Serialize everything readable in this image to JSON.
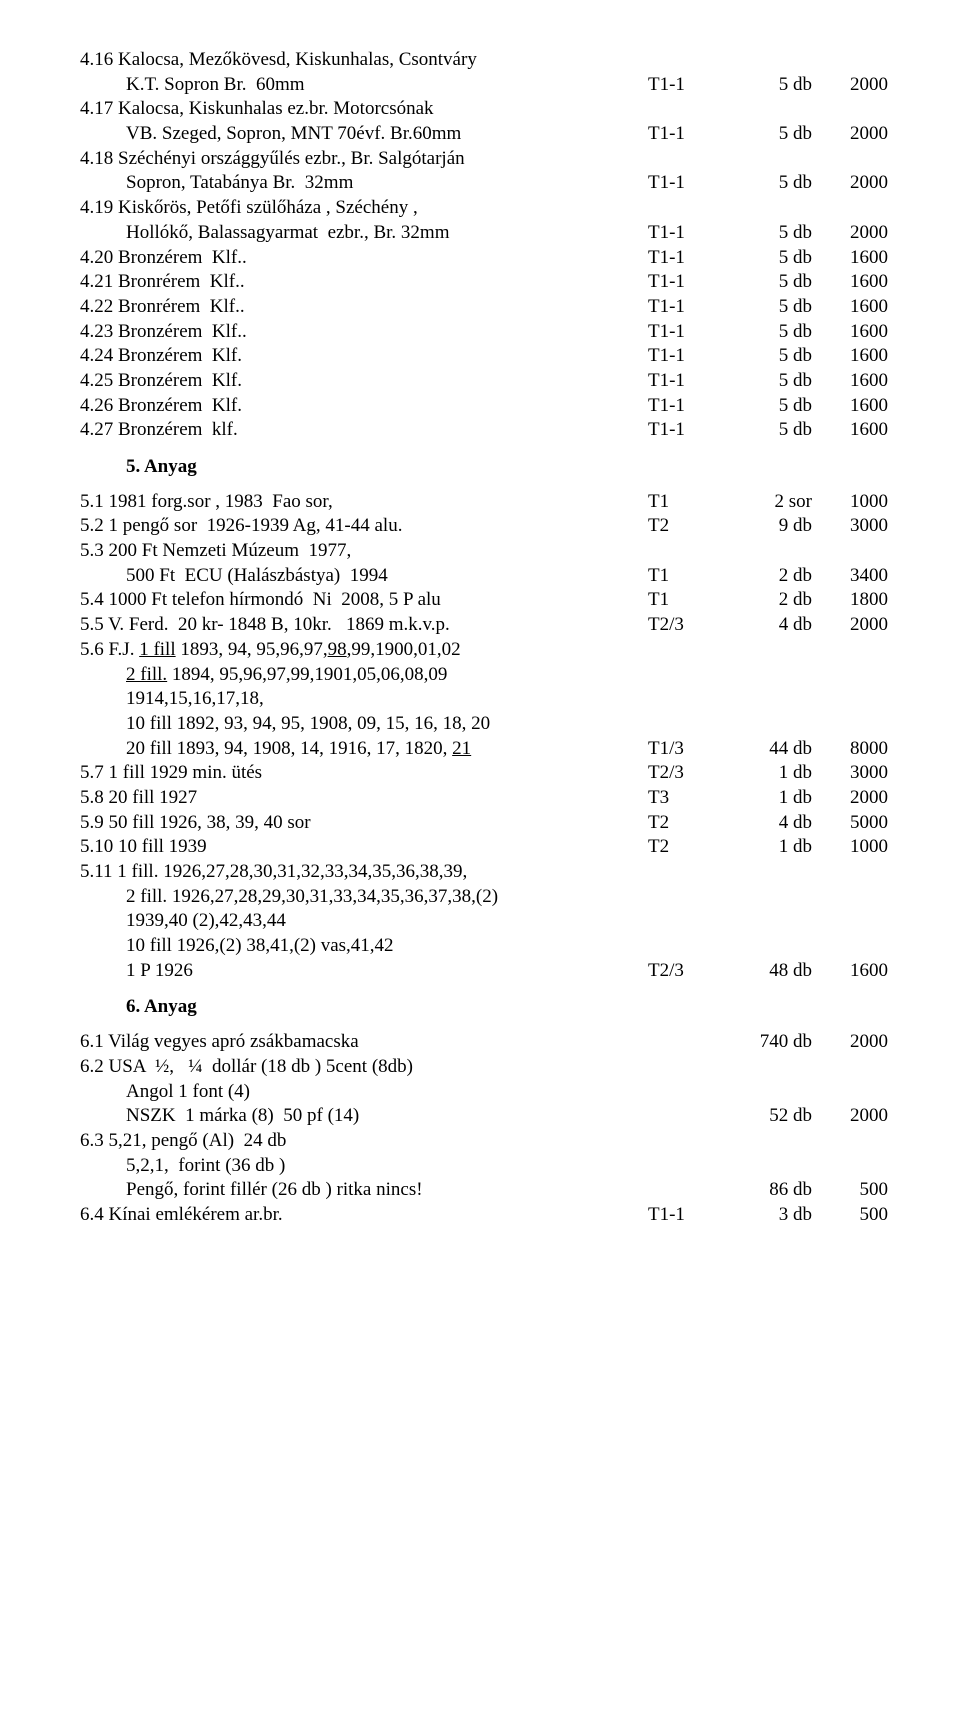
{
  "sec4": {
    "items": [
      {
        "n": "4.16",
        "lines": [
          "Kalocsa, Mezőkövesd, Kiskunhalas, Csontváry",
          "K.T. Sopron Br.  60mm"
        ],
        "t": "T1-1",
        "q": "5 db",
        "p": "2000"
      },
      {
        "n": "4.17",
        "lines": [
          "Kalocsa, Kiskunhalas ez.br. Motorcsónak",
          "VB. Szeged, Sopron, MNT 70évf. Br.60mm"
        ],
        "t": "T1-1",
        "q": "5 db",
        "p": "2000"
      },
      {
        "n": "4.18",
        "lines": [
          "Széchényi országgyűlés ezbr., Br. Salgótarján",
          "Sopron, Tatabánya Br.  32mm"
        ],
        "t": "T1-1",
        "q": "5 db",
        "p": "2000"
      },
      {
        "n": "4.19",
        "lines": [
          "Kiskőrös, Petőfi szülőháza , Széchény ,",
          "Hollókő, Balassagyarmat  ezbr., Br. 32mm"
        ],
        "t": "T1-1",
        "q": "5 db",
        "p": "2000"
      },
      {
        "n": "4.20",
        "lines": [
          "Bronzérem  Klf.."
        ],
        "t": "T1-1",
        "q": "5 db",
        "p": "1600"
      },
      {
        "n": "4.21",
        "lines": [
          "Bronrérem  Klf.."
        ],
        "t": "T1-1",
        "q": "5 db",
        "p": "1600"
      },
      {
        "n": "4.22",
        "lines": [
          "Bronrérem  Klf.."
        ],
        "t": "T1-1",
        "q": "5 db",
        "p": "1600"
      },
      {
        "n": "4.23",
        "lines": [
          "Bronzérem  Klf.."
        ],
        "t": "T1-1",
        "q": "5 db",
        "p": "1600"
      },
      {
        "n": "4.24",
        "lines": [
          "Bronzérem  Klf."
        ],
        "t": "T1-1",
        "q": "5 db",
        "p": "1600"
      },
      {
        "n": "4.25",
        "lines": [
          "Bronzérem  Klf."
        ],
        "t": "T1-1",
        "q": "5 db",
        "p": "1600"
      },
      {
        "n": "4.26",
        "lines": [
          "Bronzérem  Klf."
        ],
        "t": "T1-1",
        "q": "5 db",
        "p": "1600"
      },
      {
        "n": "4.27",
        "lines": [
          "Bronzérem  klf."
        ],
        "t": "T1-1",
        "q": "5 db",
        "p": "1600"
      }
    ]
  },
  "sec5": {
    "heading": "5.  Anyag",
    "items": [
      {
        "n": "5.1",
        "lines": [
          "1981 forg.sor , 1983  Fao sor,"
        ],
        "t": "T1",
        "q": "2 sor",
        "p": "1000"
      },
      {
        "n": "5.2",
        "lines": [
          "1 pengő sor  1926-1939 Ag, 41-44 alu."
        ],
        "t": "T2",
        "q": "9 db",
        "p": "3000"
      },
      {
        "n": "5.3",
        "lines": [
          "200 Ft Nemzeti Múzeum  1977,",
          "500 Ft  ECU (Halászbástya)  1994"
        ],
        "t": "T1",
        "q": "2 db",
        "p": "3400"
      },
      {
        "n": "5.4",
        "lines": [
          "1000 Ft telefon hírmondó  Ni  2008, 5 P alu"
        ],
        "t": "T1",
        "q": "2 db",
        "p": "1800"
      },
      {
        "n": "5.5",
        "lines": [
          "V. Ferd.  20 kr- 1848 B, 10kr.   1869 m.k.v.p."
        ],
        "t": "T2/3",
        "q": "4 db",
        "p": "2000"
      },
      {
        "n": "5.6",
        "html": true,
        "lines": [
          "F.J. <u>1 fill</u> 1893, 94, 95,96,97,<u>98</u>,99,1900,01,02",
          "<u>2 fill.</u> 1894, 95,96,97,99,1901,05,06,08,09",
          "1914,15,16,17,18,",
          "10 fill 1892, 93, 94, 95, 1908, 09, 15, 16, 18, 20",
          "20 fill 1893, 94, 1908, 14, 1916, 17, 1820, <u>21</u>"
        ],
        "t": "T1/3",
        "q": "44 db",
        "p": "8000"
      },
      {
        "n": "5.7",
        "lines": [
          "1 fill 1929 min. ütés"
        ],
        "t": "T2/3",
        "q": "1 db",
        "p": "3000"
      },
      {
        "n": "5.8",
        "lines": [
          "20 fill 1927"
        ],
        "t": "T3",
        "q": "1 db",
        "p": "2000"
      },
      {
        "n": "5.9",
        "lines": [
          "50 fill 1926, 38, 39, 40 sor"
        ],
        "t": "T2",
        "q": "4 db",
        "p": "5000"
      },
      {
        "n": "5.10",
        "lines": [
          "10 fill 1939"
        ],
        "t": "T2",
        "q": "1 db",
        "p": "1000"
      },
      {
        "n": "5.11",
        "lines": [
          "1 fill. 1926,27,28,30,31,32,33,34,35,36,38,39,",
          "2 fill. 1926,27,28,29,30,31,33,34,35,36,37,38,(2)",
          "1939,40 (2),42,43,44",
          "10 fill 1926,(2) 38,41,(2) vas,41,42",
          "1 P 1926"
        ],
        "t": "T2/3",
        "q": "48 db",
        "p": "1600"
      }
    ]
  },
  "sec6": {
    "heading": "6.   Anyag",
    "items": [
      {
        "n": "6.1",
        "lines": [
          "Világ vegyes apró zsákbamacska"
        ],
        "t": "",
        "q": "740 db",
        "p": "2000"
      },
      {
        "n": "6.2",
        "lines": [
          "USA  ½,   ¼  dollár (18 db ) 5cent (8db)",
          "Angol 1 font (4)",
          "NSZK  1 márka (8)  50 pf (14)"
        ],
        "t": "",
        "q": "52 db",
        "p": "2000"
      },
      {
        "n": "6.3",
        "lines": [
          "5,21, pengő (Al)  24 db",
          "5,2,1,  forint (36 db )",
          "Pengő, forint fillér (26 db ) ritka nincs!"
        ],
        "t": "",
        "q": "86 db",
        "p": "500"
      },
      {
        "n": "6.4",
        "lines": [
          "Kínai emlékérem ar.br."
        ],
        "t": "T1-1",
        "q": "3 db",
        "p": "500"
      }
    ]
  }
}
